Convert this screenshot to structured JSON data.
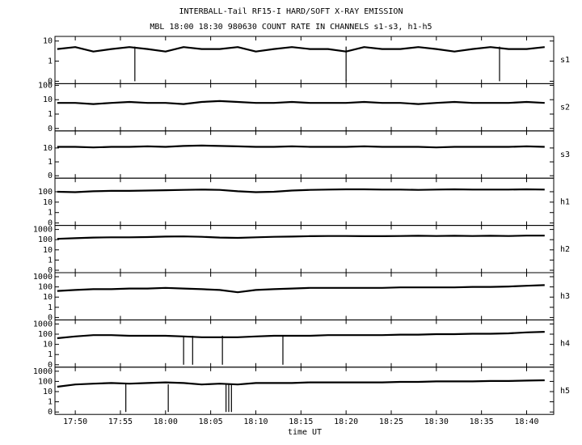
{
  "title": "INTERBALL-Tail RF15-I HARD/SOFT X-RAY EMISSION",
  "subtitle": "MBL 18:00 18:30 980630  COUNT RATE IN CHANNELS s1-s3, h1-h5",
  "x_label": "time UT",
  "xlim": [
    1067.75,
    1123
  ],
  "xticks": [
    {
      "value": 1070,
      "label": "17:50"
    },
    {
      "value": 1075,
      "label": "17:55"
    },
    {
      "value": 1080,
      "label": "18:00"
    },
    {
      "value": 1085,
      "label": "18:05"
    },
    {
      "value": 1090,
      "label": "18:10"
    },
    {
      "value": 1095,
      "label": "18:15"
    },
    {
      "value": 1100,
      "label": "18:20"
    },
    {
      "value": 1105,
      "label": "18:25"
    },
    {
      "value": 1110,
      "label": "18:30"
    },
    {
      "value": 1115,
      "label": "18:35"
    },
    {
      "value": 1120,
      "label": "18:40"
    }
  ],
  "x": [
    1068,
    1070,
    1072,
    1074,
    1076,
    1078,
    1080,
    1082,
    1084,
    1086,
    1088,
    1090,
    1092,
    1094,
    1096,
    1098,
    1100,
    1102,
    1104,
    1106,
    1108,
    1110,
    1112,
    1114,
    1116,
    1118,
    1120,
    1122
  ],
  "chart_data": [
    {
      "type": "line",
      "label": "s1",
      "yscale": "log",
      "ylim": [
        0,
        17
      ],
      "yticks": [
        0,
        1,
        10
      ],
      "values": [
        4,
        5,
        3,
        4,
        5,
        4,
        3,
        5,
        4,
        4,
        5,
        3,
        4,
        5,
        4,
        4,
        3,
        5,
        4,
        4,
        5,
        4,
        3,
        4,
        5,
        4,
        4,
        5
      ],
      "dropouts": [
        1076.6,
        1100,
        1117
      ]
    },
    {
      "type": "line",
      "label": "s2",
      "yscale": "log",
      "ylim": [
        0,
        130
      ],
      "yticks": [
        0,
        1,
        10,
        100
      ],
      "values": [
        6,
        6,
        5,
        6,
        7,
        6,
        6,
        5,
        7,
        8,
        7,
        6,
        6,
        7,
        6,
        6,
        6,
        7,
        6,
        6,
        5,
        6,
        7,
        6,
        6,
        6,
        7,
        6
      ],
      "dropouts": []
    },
    {
      "type": "line",
      "label": "s3",
      "yscale": "log",
      "ylim": [
        0,
        170
      ],
      "yticks": [
        0,
        1,
        10
      ],
      "values": [
        12,
        12,
        11,
        12,
        12,
        13,
        12,
        14,
        15,
        14,
        13,
        12,
        12,
        13,
        12,
        12,
        12,
        13,
        12,
        12,
        12,
        11,
        12,
        12,
        12,
        12,
        13,
        12
      ],
      "dropouts": []
    },
    {
      "type": "line",
      "label": "h1",
      "yscale": "log",
      "ylim": [
        0,
        2000
      ],
      "yticks": [
        0,
        1,
        10,
        100
      ],
      "values": [
        100,
        90,
        110,
        120,
        120,
        130,
        140,
        150,
        160,
        150,
        110,
        90,
        100,
        130,
        150,
        160,
        170,
        170,
        160,
        160,
        150,
        160,
        170,
        160,
        160,
        160,
        170,
        160
      ],
      "dropouts": []
    },
    {
      "type": "line",
      "label": "h2",
      "yscale": "log",
      "ylim": [
        0,
        2500
      ],
      "yticks": [
        0,
        1,
        10,
        100,
        1000
      ],
      "values": [
        120,
        140,
        160,
        170,
        170,
        180,
        200,
        210,
        190,
        160,
        150,
        170,
        190,
        200,
        220,
        230,
        230,
        220,
        220,
        230,
        240,
        230,
        240,
        230,
        240,
        230,
        250,
        250
      ],
      "dropouts": []
    },
    {
      "type": "line",
      "label": "h3",
      "yscale": "log",
      "ylim": [
        0,
        2500
      ],
      "yticks": [
        0,
        1,
        10,
        100,
        1000
      ],
      "values": [
        40,
        50,
        60,
        60,
        70,
        70,
        80,
        70,
        60,
        50,
        30,
        50,
        60,
        70,
        80,
        80,
        80,
        80,
        80,
        90,
        90,
        90,
        90,
        100,
        100,
        110,
        130,
        150
      ],
      "dropouts": []
    },
    {
      "type": "line",
      "label": "h4",
      "yscale": "log",
      "ylim": [
        0,
        2500
      ],
      "yticks": [
        0,
        1,
        10,
        100,
        1000
      ],
      "values": [
        40,
        60,
        80,
        80,
        70,
        70,
        70,
        60,
        50,
        50,
        50,
        60,
        70,
        70,
        70,
        80,
        80,
        80,
        80,
        90,
        90,
        100,
        100,
        110,
        110,
        120,
        150,
        170
      ],
      "dropouts": [
        1082,
        1083,
        1086.3,
        1093
      ]
    },
    {
      "type": "line",
      "label": "h5",
      "yscale": "log",
      "ylim": [
        0,
        2500
      ],
      "yticks": [
        0,
        1,
        10,
        100,
        1000
      ],
      "values": [
        30,
        50,
        60,
        70,
        60,
        70,
        80,
        70,
        50,
        60,
        50,
        70,
        70,
        70,
        80,
        80,
        80,
        80,
        80,
        90,
        90,
        100,
        100,
        100,
        110,
        110,
        120,
        130
      ],
      "dropouts": [
        1075.6,
        1080.3,
        1086.7,
        1087,
        1087.3
      ]
    }
  ]
}
